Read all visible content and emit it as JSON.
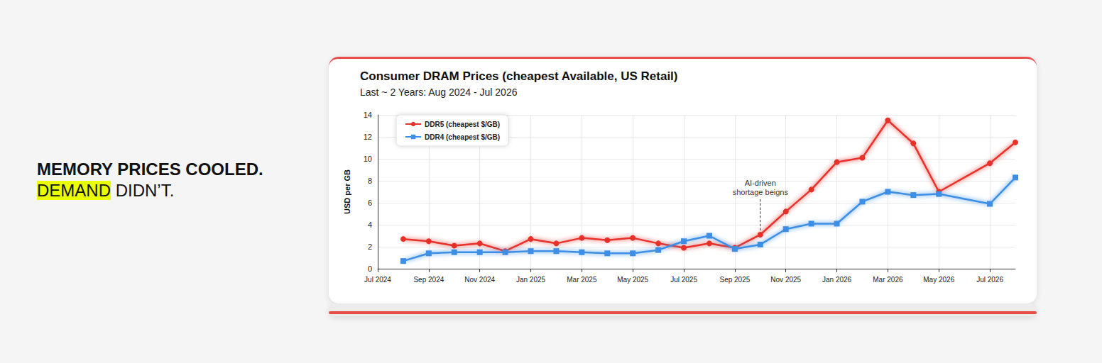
{
  "headline": {
    "line1": "MEMORY PRICES COOLED.",
    "highlight": "DEMAND",
    "rest": "DIDN’T."
  },
  "chart_data": {
    "type": "line",
    "title": "Consumer DRAM Prices (cheapest Available, US Retail)",
    "subtitle": "Last ~ 2 Years: Aug 2024 - Jul 2026",
    "y_label": "USD per GB",
    "categories": [
      "Jul 2024",
      null,
      "Sep 2024",
      null,
      "Nov 2024",
      null,
      "Jan 2025",
      null,
      "Mar 2025",
      null,
      "May 2025",
      null,
      "Jul 2025",
      null,
      "Sep 2025",
      null,
      "Nov 2025",
      null,
      "Jan 2026",
      null,
      "Mar 2026",
      null,
      "May 2026",
      null,
      "Jul 2026",
      null
    ],
    "series": [
      {
        "name": "DDR5 (cheapest $/GB)",
        "color": "#e8302a",
        "marker": "circle",
        "values": [
          null,
          2.7,
          2.5,
          2.1,
          2.3,
          1.6,
          2.7,
          2.3,
          2.8,
          2.6,
          2.8,
          2.3,
          1.9,
          2.3,
          1.9,
          3.1,
          5.2,
          7.2,
          9.7,
          10.1,
          13.5,
          11.4,
          7.0,
          null,
          9.6,
          11.5
        ]
      },
      {
        "name": "DDR4 (cheapest $/GB)",
        "color": "#3d8fe6",
        "marker": "square",
        "values": [
          null,
          0.7,
          1.4,
          1.5,
          1.5,
          1.5,
          1.6,
          1.6,
          1.5,
          1.4,
          1.4,
          1.7,
          2.5,
          3.0,
          1.8,
          2.2,
          3.6,
          4.1,
          4.1,
          6.1,
          7.0,
          6.7,
          6.8,
          null,
          5.9,
          8.3
        ]
      }
    ],
    "annotations": [
      {
        "text": "AI-driven shortage beigns",
        "series": "DDR5 (cheapest $/GB)",
        "value": 3.1
      }
    ],
    "ylim": [
      0,
      14
    ],
    "yticks": [
      0,
      2,
      4,
      6,
      8,
      10,
      12,
      14
    ],
    "grid": true,
    "legend": "upper left"
  }
}
